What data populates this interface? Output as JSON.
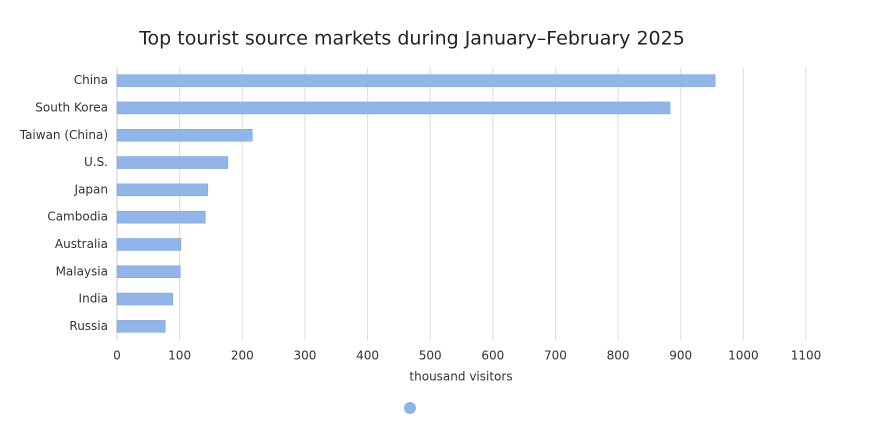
{
  "chart_data": {
    "type": "hbar",
    "title": "Top tourist source markets during January–February 2025",
    "categories": [
      "China",
      "South Korea",
      "Taiwan (China)",
      "U.S.",
      "Japan",
      "Cambodia",
      "Australia",
      "Malaysia",
      "India",
      "Russia"
    ],
    "values": [
      955,
      883,
      216,
      177,
      145,
      141,
      102,
      101,
      89,
      77
    ],
    "color": "#91b4e9",
    "xlabel": "thousand visitors",
    "xlim": [
      0,
      1100
    ],
    "xticks": [
      0,
      100,
      200,
      300,
      400,
      500,
      600,
      700,
      800,
      900,
      1000,
      1100
    ],
    "grid": true
  }
}
